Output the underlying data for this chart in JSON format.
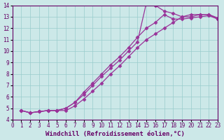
{
  "xlabel": "Windchill (Refroidissement éolien,°C)",
  "ylabel": "",
  "xlim": [
    0,
    23
  ],
  "ylim": [
    4,
    14
  ],
  "xticks": [
    0,
    1,
    2,
    3,
    4,
    5,
    6,
    7,
    8,
    9,
    10,
    11,
    12,
    13,
    14,
    15,
    16,
    17,
    18,
    19,
    20,
    21,
    22,
    23
  ],
  "yticks": [
    4,
    5,
    6,
    7,
    8,
    9,
    10,
    11,
    12,
    13,
    14
  ],
  "bg_color": "#cce8e8",
  "grid_color": "#99cccc",
  "line_color": "#993399",
  "line1_x": [
    1,
    2,
    3,
    4,
    5,
    6,
    7,
    8,
    9,
    10,
    11,
    12,
    13,
    14,
    15,
    16,
    17,
    18,
    19,
    20,
    21,
    22,
    23
  ],
  "line1_y": [
    4.8,
    4.6,
    4.7,
    4.8,
    4.8,
    5.0,
    5.5,
    6.2,
    7.0,
    7.8,
    8.5,
    9.2,
    10.0,
    10.8,
    14.2,
    14.0,
    13.5,
    13.3,
    13.0,
    13.0,
    13.2,
    13.2,
    12.8
  ],
  "line2_x": [
    1,
    2,
    3,
    4,
    5,
    6,
    7,
    8,
    9,
    10,
    11,
    12,
    13,
    14,
    15,
    16,
    17,
    18,
    19,
    20,
    21,
    22,
    23
  ],
  "line2_y": [
    4.8,
    4.6,
    4.7,
    4.8,
    4.8,
    5.0,
    5.5,
    6.4,
    7.2,
    8.0,
    8.8,
    9.5,
    10.3,
    11.2,
    12.0,
    12.5,
    13.2,
    12.8,
    12.8,
    12.9,
    13.0,
    13.1,
    12.8
  ],
  "line3_x": [
    1,
    2,
    3,
    4,
    5,
    6,
    7,
    8,
    9,
    10,
    11,
    12,
    13,
    14,
    15,
    16,
    17,
    18,
    19,
    20,
    21,
    22,
    23
  ],
  "line3_y": [
    4.8,
    4.6,
    4.7,
    4.8,
    4.8,
    4.8,
    5.2,
    5.8,
    6.5,
    7.2,
    8.0,
    8.7,
    9.5,
    10.3,
    11.0,
    11.5,
    12.0,
    12.5,
    13.0,
    13.2,
    13.2,
    13.2,
    12.9
  ],
  "marker": "D",
  "markersize": 2.5,
  "linewidth": 0.9,
  "tick_fontsize": 5.5,
  "xlabel_fontsize": 6.5
}
